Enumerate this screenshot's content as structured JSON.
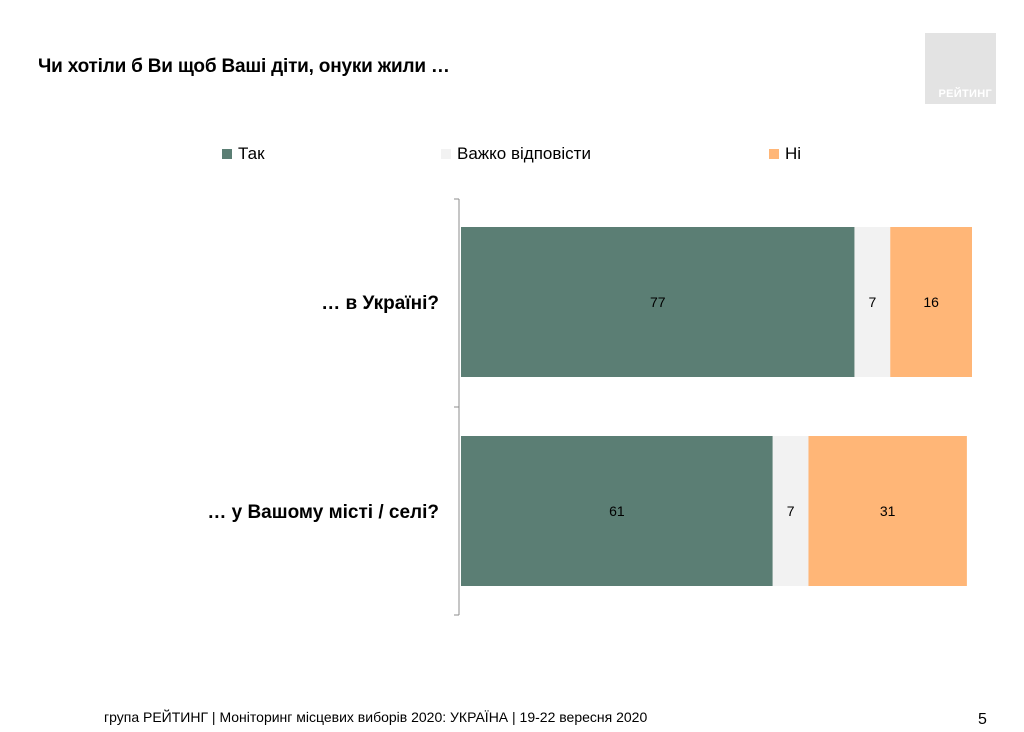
{
  "title": "Чи хотіли б Ви щоб Ваші діти, онуки жили …",
  "logo_text": "РЕЙТИНГ",
  "footer": "група РЕЙТИНГ | Моніторинг місцевих виборів 2020: УКРАЇНА | 19-22 вересня 2020",
  "page_number": "5",
  "colors": {
    "yes": "#5b7e74",
    "hard": "#f2f2f2",
    "no": "#ffb677",
    "logo_bg": "#e3e3e3"
  },
  "chart_data": {
    "type": "bar",
    "orientation": "horizontal",
    "stacked": true,
    "categories": [
      "… в Україні?",
      "… у Вашому місті / селі?"
    ],
    "series": [
      {
        "name": "Так",
        "values": [
          77,
          61
        ],
        "color": "#5b7e74"
      },
      {
        "name": "Важко відповісти",
        "values": [
          7,
          7
        ],
        "color": "#f2f2f2"
      },
      {
        "name": "Ні",
        "values": [
          16,
          31
        ],
        "color": "#ffb677"
      }
    ],
    "xlim": [
      0,
      100
    ],
    "grid": false,
    "legend_position": "top",
    "data_labels": true
  }
}
